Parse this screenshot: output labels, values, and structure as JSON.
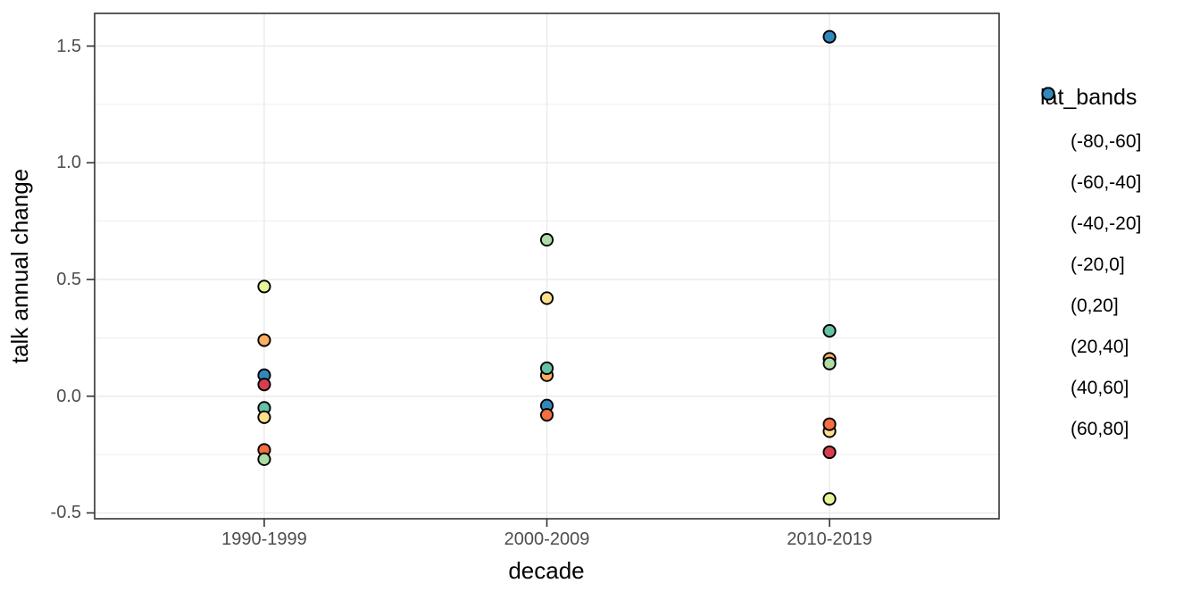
{
  "chart_data": {
    "type": "scatter",
    "title": "",
    "xlabel": "decade",
    "ylabel": "talk annual change",
    "categories": [
      "1990-1999",
      "2000-2009",
      "2010-2019"
    ],
    "y_ticks": [
      -0.5,
      0.0,
      0.5,
      1.0,
      1.5
    ],
    "y_tick_labels": [
      "-0.5",
      "0.0",
      "0.5",
      "1.0",
      "1.5"
    ],
    "y_minor_breaks": [
      -0.25,
      0.25,
      0.75,
      1.25
    ],
    "ylim": [
      -0.525,
      1.64
    ],
    "grid": true,
    "legend": {
      "title": "lat_bands",
      "position": "right",
      "items": [
        {
          "label": "(-80,-60]",
          "color": "#D53E4F"
        },
        {
          "label": "(-60,-40]",
          "color": "#F46D43"
        },
        {
          "label": "(-40,-20]",
          "color": "#FDAE61"
        },
        {
          "label": "(-20,0]",
          "color": "#FEE08B"
        },
        {
          "label": "(0,20]",
          "color": "#E6F598"
        },
        {
          "label": "(20,40]",
          "color": "#ABDDA4"
        },
        {
          "label": "(40,60]",
          "color": "#66C2A5"
        },
        {
          "label": "(60,80]",
          "color": "#3288BD"
        }
      ]
    },
    "points": [
      {
        "decade": "1990-1999",
        "band": "(0,20]",
        "value": 0.47
      },
      {
        "decade": "1990-1999",
        "band": "(-40,-20]",
        "value": 0.24
      },
      {
        "decade": "1990-1999",
        "band": "(60,80]",
        "value": 0.09
      },
      {
        "decade": "1990-1999",
        "band": "(-80,-60]",
        "value": 0.05
      },
      {
        "decade": "1990-1999",
        "band": "(40,60]",
        "value": -0.05
      },
      {
        "decade": "1990-1999",
        "band": "(-20,0]",
        "value": -0.09
      },
      {
        "decade": "1990-1999",
        "band": "(-60,-40]",
        "value": -0.23
      },
      {
        "decade": "1990-1999",
        "band": "(20,40]",
        "value": -0.27
      },
      {
        "decade": "2000-2009",
        "band": "(20,40]",
        "value": 0.67
      },
      {
        "decade": "2000-2009",
        "band": "(-20,0]",
        "value": 0.42
      },
      {
        "decade": "2000-2009",
        "band": "(-40,-20]",
        "value": 0.09
      },
      {
        "decade": "2000-2009",
        "band": "(40,60]",
        "value": 0.12
      },
      {
        "decade": "2000-2009",
        "band": "(60,80]",
        "value": -0.04
      },
      {
        "decade": "2000-2009",
        "band": "(-60,-40]",
        "value": -0.08
      },
      {
        "decade": "2010-2019",
        "band": "(60,80]",
        "value": 1.54
      },
      {
        "decade": "2010-2019",
        "band": "(40,60]",
        "value": 0.28
      },
      {
        "decade": "2010-2019",
        "band": "(-40,-20]",
        "value": 0.16
      },
      {
        "decade": "2010-2019",
        "band": "(20,40]",
        "value": 0.14
      },
      {
        "decade": "2010-2019",
        "band": "(-20,0]",
        "value": -0.15
      },
      {
        "decade": "2010-2019",
        "band": "(-60,-40]",
        "value": -0.12
      },
      {
        "decade": "2010-2019",
        "band": "(-80,-60]",
        "value": -0.24
      },
      {
        "decade": "2010-2019",
        "band": "(0,20]",
        "value": -0.44
      }
    ],
    "style": {
      "panel_bg": "#FFFFFF",
      "panel_border": "#333333",
      "grid_color": "#EBEBEB",
      "tick_color": "#333333",
      "tick_label_color": "#4D4D4D",
      "point_outline": "#000000"
    }
  }
}
